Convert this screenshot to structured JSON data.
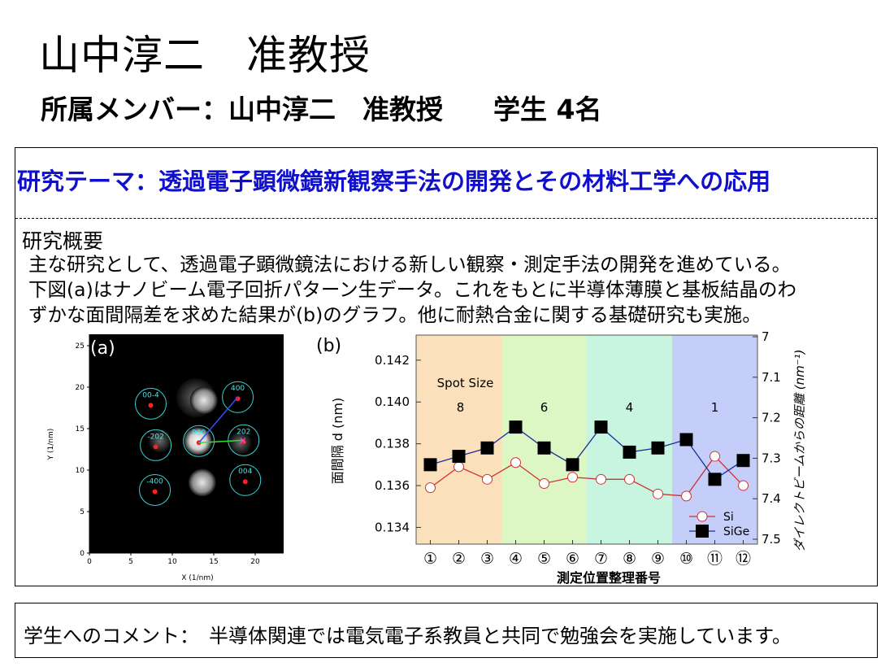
{
  "header": {
    "title": "山中淳二　准教授",
    "members_label": "所属メンバー：",
    "members_value": "山中淳二　准教授",
    "students": "学生 4名"
  },
  "research": {
    "theme": "研究テーマ：透過電子顕微鏡新観察手法の開発とその材料工学への応用",
    "overview_heading": "研究概要",
    "overview_lines": [
      "主な研究として、透過電子顕微鏡法における新しい観察・測定手法の開発を進めている。",
      "下図(a)はナノビーム電子回折パターン生データ。これをもとに半導体薄膜と基板結晶のわ",
      "ずかな面間隔差を求めた結果が(b)のグラフ。他に耐熱合金に関する基礎研究も実施。"
    ]
  },
  "figure_a": {
    "panel_label": "(a)",
    "xlabel": "X (1/nm)",
    "ylabel": "Y (1/nm)",
    "xticks": [
      "0",
      "5",
      "10",
      "15",
      "20",
      "25"
    ],
    "yticks": [
      "0",
      "5",
      "10",
      "15",
      "20",
      "25"
    ],
    "spot_labels": [
      "00-4",
      "400",
      "-202",
      "202",
      "-400",
      "004",
      "000"
    ]
  },
  "chart_data": {
    "type": "line",
    "panel_label": "(b)",
    "title": "",
    "xlabel": "測定位置整理番号",
    "ylabel": "面間隔 d (nm)",
    "y2label": "ダイレクトビームからの距離 (nm⁻¹)",
    "categories": [
      "①",
      "②",
      "③",
      "④",
      "⑤",
      "⑥",
      "⑦",
      "⑧",
      "⑨",
      "⑩",
      "⑪",
      "⑫"
    ],
    "ylim": [
      0.1332,
      0.1432
    ],
    "yticks": [
      "0.134",
      "0.136",
      "0.138",
      "0.140",
      "0.142"
    ],
    "y2lim": [
      7.0,
      7.5
    ],
    "y2ticks": [
      "7",
      "7.1",
      "7.2",
      "7.3",
      "7.4",
      "7.5"
    ],
    "group_title": "Spot Size",
    "groups": [
      {
        "label": "8",
        "from": 1,
        "to": 3,
        "color": "#fbe1bb"
      },
      {
        "label": "6",
        "from": 4,
        "to": 6,
        "color": "#dcf6c4"
      },
      {
        "label": "4",
        "from": 7,
        "to": 9,
        "color": "#c8f5df"
      },
      {
        "label": "1",
        "from": 10,
        "to": 12,
        "color": "#c4cef8"
      }
    ],
    "series": [
      {
        "name": "Si",
        "color": "#cc3333",
        "marker": "circle",
        "values": [
          0.1359,
          0.1369,
          0.1363,
          0.1371,
          0.1361,
          0.1364,
          0.1363,
          0.1363,
          0.1356,
          0.1355,
          0.1374,
          0.136
        ]
      },
      {
        "name": "SiGe",
        "color": "#1a2f9e",
        "marker": "square",
        "values": [
          0.137,
          0.1374,
          0.1378,
          0.1388,
          0.1378,
          0.137,
          0.1388,
          0.1376,
          0.1378,
          0.1382,
          0.1363,
          0.1372
        ]
      }
    ]
  },
  "comment": {
    "text": "学生へのコメント：　半導体関連では電気電子系教員と共同で勉強会を実施しています。"
  }
}
